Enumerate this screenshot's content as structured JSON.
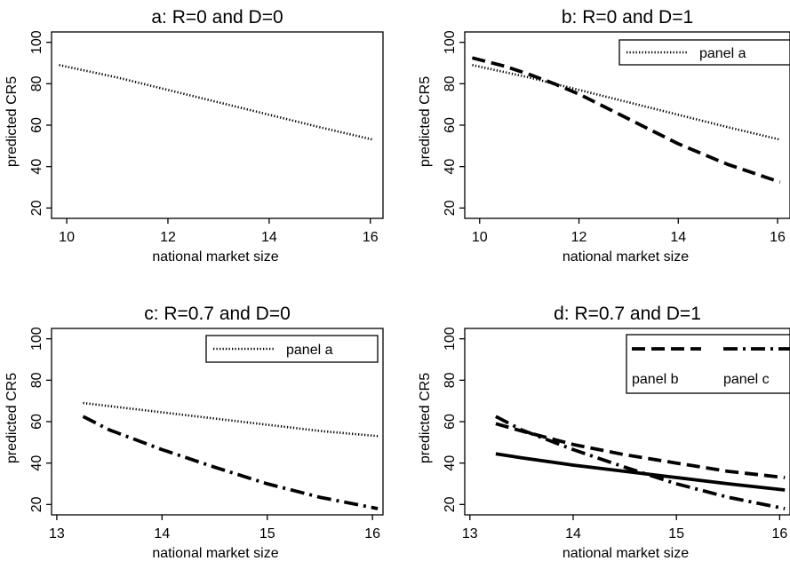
{
  "chart_data": [
    {
      "type": "line",
      "title": "a: R=0 and D=0",
      "xlabel": "national market size",
      "ylabel": "predicted CR5",
      "xlim": [
        9.7,
        16.25
      ],
      "ylim": [
        15,
        105
      ],
      "xticks": [
        "10",
        "12",
        "14",
        "16"
      ],
      "yticks": [
        "20",
        "40",
        "60",
        "80",
        "100"
      ],
      "grid": false,
      "legend": [],
      "series": [
        {
          "name": "",
          "style": "dotted",
          "x": [
            9.85,
            11,
            12,
            13,
            14,
            15,
            16.05
          ],
          "y": [
            89,
            83,
            77,
            71,
            65,
            59,
            53
          ]
        }
      ]
    },
    {
      "type": "line",
      "title": "b: R=0 and D=1",
      "xlabel": "national market size",
      "ylabel": "predicted CR5",
      "xlim": [
        9.7,
        16.25
      ],
      "ylim": [
        15,
        105
      ],
      "xticks": [
        "10",
        "12",
        "14",
        "16"
      ],
      "yticks": [
        "20",
        "40",
        "60",
        "80",
        "100"
      ],
      "grid": false,
      "legend_position": "top-right",
      "legend": [
        {
          "label": "panel a",
          "style": "dotted"
        }
      ],
      "series": [
        {
          "name": "panel a",
          "style": "dotted",
          "x": [
            9.85,
            11,
            12,
            13,
            14,
            15,
            16.05
          ],
          "y": [
            89,
            83,
            77,
            71,
            65,
            59,
            53
          ]
        },
        {
          "name": "",
          "style": "dashed",
          "x": [
            9.85,
            10.5,
            11,
            11.5,
            12,
            12.5,
            13,
            13.5,
            14,
            14.5,
            15,
            15.5,
            16.05
          ],
          "y": [
            92.5,
            88.5,
            84.5,
            80,
            75,
            69,
            63,
            57,
            51,
            46,
            41,
            37,
            32.5
          ]
        }
      ]
    },
    {
      "type": "line",
      "title": "c: R=0.7 and D=0",
      "xlabel": "national market size",
      "ylabel": "predicted CR5",
      "xlim": [
        12.95,
        16.1
      ],
      "ylim": [
        15,
        105
      ],
      "xticks": [
        "13",
        "14",
        "15",
        "16"
      ],
      "yticks": [
        "20",
        "40",
        "60",
        "80",
        "100"
      ],
      "grid": false,
      "legend_position": "top-right",
      "legend": [
        {
          "label": "panel a",
          "style": "dotted"
        }
      ],
      "series": [
        {
          "name": "panel a",
          "style": "dotted",
          "x": [
            13.25,
            13.5,
            14,
            14.5,
            15,
            15.5,
            16.05
          ],
          "y": [
            69,
            67.5,
            64.5,
            61.5,
            58.5,
            55.5,
            53
          ]
        },
        {
          "name": "",
          "style": "dashdot",
          "x": [
            13.25,
            13.5,
            14,
            14.5,
            15,
            15.5,
            16.05
          ],
          "y": [
            62.5,
            56,
            46.5,
            38,
            30,
            23.5,
            18
          ]
        }
      ]
    },
    {
      "type": "line",
      "title": "d: R=0.7 and D=1",
      "xlabel": "national market size",
      "ylabel": "predicted CR5",
      "xlim": [
        12.95,
        16.1
      ],
      "ylim": [
        15,
        105
      ],
      "xticks": [
        "13",
        "14",
        "15",
        "16"
      ],
      "yticks": [
        "20",
        "40",
        "60",
        "80",
        "100"
      ],
      "grid": false,
      "legend_position": "top-right",
      "legend": [
        {
          "label": "panel b",
          "style": "dashed"
        },
        {
          "label": "panel c",
          "style": "dashdot"
        }
      ],
      "series": [
        {
          "name": "panel b",
          "style": "dashed",
          "x": [
            13.25,
            13.5,
            14,
            14.5,
            15,
            15.5,
            16.05
          ],
          "y": [
            59,
            55.5,
            49,
            44,
            40,
            36,
            33
          ]
        },
        {
          "name": "panel c",
          "style": "dashdot",
          "x": [
            13.25,
            13.5,
            14,
            14.5,
            15,
            15.5,
            16.05
          ],
          "y": [
            62.5,
            56,
            46.5,
            38,
            30,
            23.5,
            18
          ]
        },
        {
          "name": "",
          "style": "solid",
          "x": [
            13.25,
            13.5,
            14,
            14.5,
            15,
            15.5,
            16.05
          ],
          "y": [
            44.5,
            42.5,
            39,
            36,
            33,
            30,
            27
          ]
        }
      ]
    }
  ]
}
